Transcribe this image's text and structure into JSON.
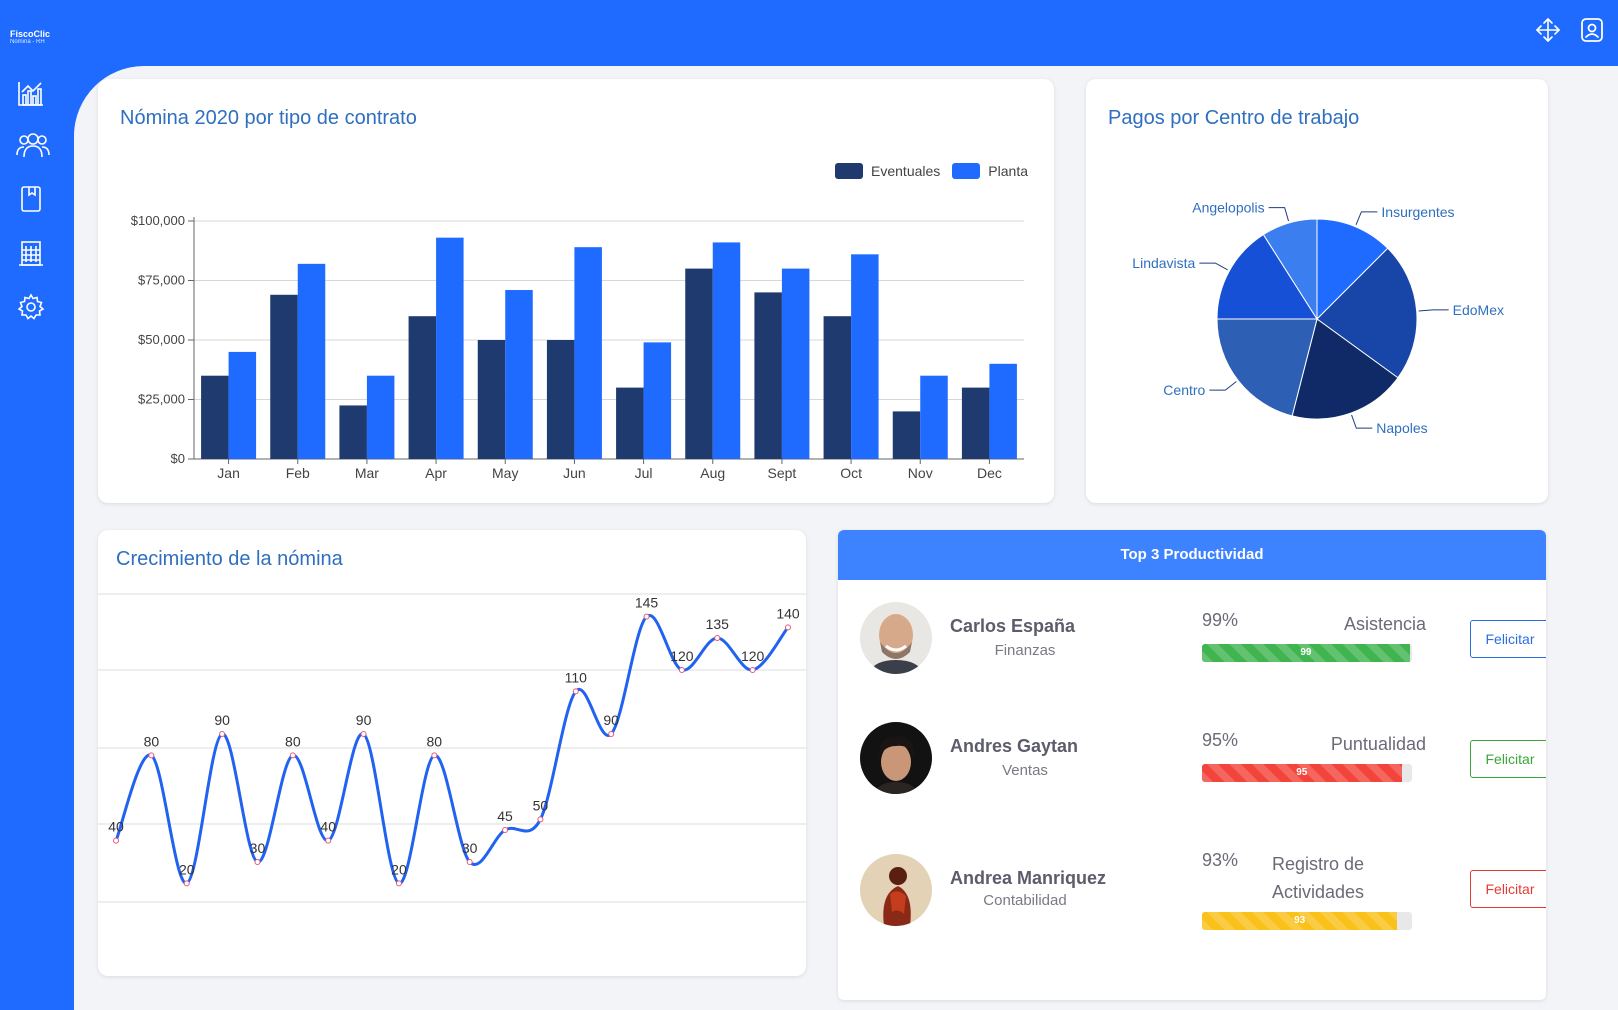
{
  "app": {
    "brand": "FiscoClic",
    "subtitle": "Nómina - RH"
  },
  "topbar": {
    "icons": [
      "move-arrows-icon",
      "profile-icon"
    ]
  },
  "sidebar": {
    "items": [
      {
        "icon": "bar-chart-icon"
      },
      {
        "icon": "users-icon"
      },
      {
        "icon": "book-icon"
      },
      {
        "icon": "building-icon"
      },
      {
        "icon": "gear-icon"
      }
    ]
  },
  "colors": {
    "brand": "#1f6bff",
    "eventuales": "#1f3a6e",
    "planta": "#1f6bff",
    "line": "#2162f0",
    "title": "#2f6fbf"
  },
  "bar_card": {
    "title": "Nómina 2020 por tipo de contrato"
  },
  "pie_card": {
    "title": "Pagos por Centro de trabajo"
  },
  "line_card": {
    "title": "Crecimiento de la nómina"
  },
  "chart_data": [
    {
      "type": "bar",
      "title": "Nómina 2020 por tipo de contrato",
      "categories": [
        "Jan",
        "Feb",
        "Mar",
        "Apr",
        "May",
        "Jun",
        "Jul",
        "Aug",
        "Sept",
        "Oct",
        "Nov",
        "Dec"
      ],
      "series": [
        {
          "name": "Eventuales",
          "values": [
            35000,
            69000,
            22500,
            60000,
            50000,
            50000,
            30000,
            80000,
            70000,
            60000,
            20000,
            30000
          ]
        },
        {
          "name": "Planta",
          "values": [
            45000,
            82000,
            35000,
            93000,
            71000,
            89000,
            49000,
            91000,
            80000,
            86000,
            35000,
            40000
          ]
        }
      ],
      "yticks": [
        "$0",
        "$25,000",
        "$50,000",
        "$75,000",
        "$100,000"
      ],
      "ylim": [
        0,
        100000
      ],
      "legend": "top-right",
      "grid": true
    },
    {
      "type": "pie",
      "title": "Pagos por Centro de trabajo",
      "slices": [
        {
          "label": "Insurgentes",
          "value": 12.5,
          "color": "#1f6bff"
        },
        {
          "label": "EdoMex",
          "value": 22.5,
          "color": "#1846a8"
        },
        {
          "label": "Napoles",
          "value": 19,
          "color": "#0f2a66"
        },
        {
          "label": "Centro",
          "value": 21,
          "color": "#2d5fb5"
        },
        {
          "label": "Lindavista",
          "value": 16,
          "color": "#1550d6"
        },
        {
          "label": "Angelopolis",
          "value": 9,
          "color": "#3b7ef0"
        }
      ],
      "start": "top",
      "direction": "clockwise"
    },
    {
      "type": "line",
      "title": "Crecimiento de la nómina",
      "values": [
        40,
        80,
        20,
        90,
        30,
        80,
        40,
        90,
        20,
        80,
        30,
        45,
        50,
        110,
        90,
        145,
        120,
        135,
        120,
        140
      ],
      "ylim": [
        0,
        150
      ],
      "data_labels": true,
      "grid": true,
      "smooth": true
    }
  ],
  "ranking": {
    "title": "Top 3 Productividad",
    "people": [
      {
        "name": "Carlos España",
        "dept": "Finanzas",
        "pct": "99%",
        "metric": "Asistencia",
        "bar": "99",
        "level": 0.99,
        "color": "#3fb44f",
        "button": "Felicitar",
        "button_color": "#2a6fe0",
        "avatar": "bald-man-photo"
      },
      {
        "name": "Andres Gaytan",
        "dept": "Ventas",
        "pct": "95%",
        "metric": "Puntualidad",
        "bar": "95",
        "level": 0.95,
        "color": "#f2443a",
        "button": "Felicitar",
        "button_color": "#3aa63a",
        "avatar": "young-man-photo"
      },
      {
        "name": "Andrea Manriquez",
        "dept": "Contabilidad",
        "pct": "93%",
        "metric": "Registro de Actividades",
        "bar": "93",
        "level": 0.93,
        "color": "#f9c11a",
        "button": "Felicitar",
        "button_color": "#e53a34",
        "avatar": "woman-silhouette-photo"
      }
    ]
  }
}
